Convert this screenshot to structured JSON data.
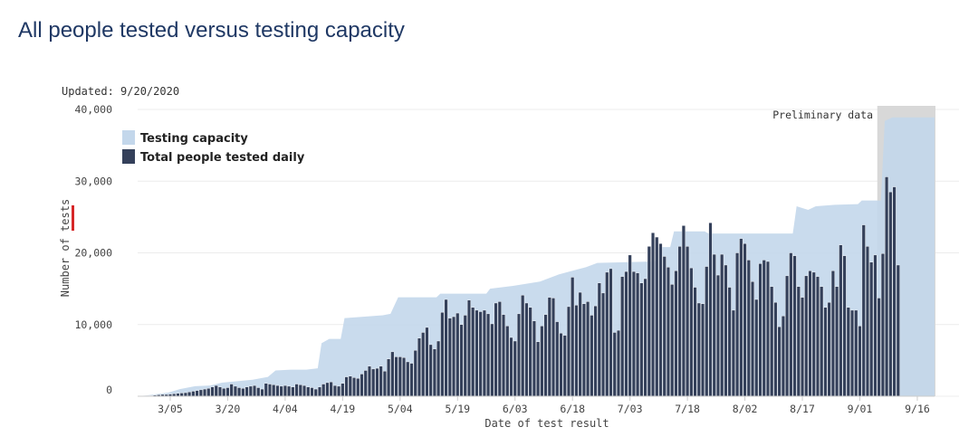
{
  "page": {
    "title": "All people tested versus testing capacity"
  },
  "chart_data": {
    "type": "bar",
    "title": "All people tested versus testing capacity",
    "subtitle": "Updated: 9/20/2020",
    "xlabel": "Date of test result",
    "ylabel": "Number of tests",
    "ylim": [
      0,
      40000
    ],
    "y_ticks": [
      0,
      10000,
      20000,
      30000,
      40000
    ],
    "y_tick_labels": [
      "0",
      "10,000",
      "20,000",
      "30,000",
      "40,000"
    ],
    "x_range": [
      "2020-02-26",
      "2020-09-20"
    ],
    "x_ticks": [
      "2020-03-05",
      "2020-03-20",
      "2020-04-04",
      "2020-04-19",
      "2020-05-04",
      "2020-05-19",
      "2020-06-03",
      "2020-06-18",
      "2020-07-03",
      "2020-07-18",
      "2020-08-02",
      "2020-08-17",
      "2020-09-01",
      "2020-09-16"
    ],
    "x_tick_labels": [
      "3/05",
      "3/20",
      "4/04",
      "4/19",
      "5/04",
      "5/19",
      "6/03",
      "6/18",
      "7/03",
      "7/18",
      "8/02",
      "8/17",
      "9/01",
      "9/16"
    ],
    "grid": true,
    "legend_position": "top-left",
    "preliminary": {
      "label": "Preliminary data",
      "from": "2020-09-07",
      "to": "2020-09-20"
    },
    "colors": {
      "capacity": "#c3d7eb",
      "tested": "#34405a",
      "preliminary_band": "#d8d8d8",
      "bar_outline": "#ffffff",
      "title": "#1f3864",
      "tick_highlight": "#d62728"
    },
    "series": [
      {
        "name": "Testing capacity",
        "kind": "area",
        "points": [
          [
            "2020-02-26",
            0
          ],
          [
            "2020-02-28",
            100
          ],
          [
            "2020-03-02",
            300
          ],
          [
            "2020-03-05",
            500
          ],
          [
            "2020-03-08",
            1000
          ],
          [
            "2020-03-12",
            1400
          ],
          [
            "2020-03-16",
            1500
          ],
          [
            "2020-03-19",
            1900
          ],
          [
            "2020-03-23",
            2100
          ],
          [
            "2020-03-27",
            2300
          ],
          [
            "2020-03-31",
            2700
          ],
          [
            "2020-04-02",
            3600
          ],
          [
            "2020-04-06",
            3700
          ],
          [
            "2020-04-10",
            3700
          ],
          [
            "2020-04-13",
            3900
          ],
          [
            "2020-04-14",
            7400
          ],
          [
            "2020-04-16",
            8000
          ],
          [
            "2020-04-19",
            8000
          ],
          [
            "2020-04-20",
            10900
          ],
          [
            "2020-04-30",
            11300
          ],
          [
            "2020-05-02",
            11500
          ],
          [
            "2020-05-04",
            13800
          ],
          [
            "2020-05-14",
            13800
          ],
          [
            "2020-05-15",
            14300
          ],
          [
            "2020-05-27",
            14300
          ],
          [
            "2020-05-28",
            15000
          ],
          [
            "2020-06-03",
            15400
          ],
          [
            "2020-06-10",
            16000
          ],
          [
            "2020-06-15",
            17000
          ],
          [
            "2020-06-22",
            18000
          ],
          [
            "2020-06-25",
            18600
          ],
          [
            "2020-07-10",
            18800
          ],
          [
            "2020-07-11",
            20800
          ],
          [
            "2020-07-14",
            20800
          ],
          [
            "2020-07-15",
            23000
          ],
          [
            "2020-07-23",
            23000
          ],
          [
            "2020-07-24",
            22700
          ],
          [
            "2020-08-15",
            22700
          ],
          [
            "2020-08-16",
            26500
          ],
          [
            "2020-08-19",
            26000
          ],
          [
            "2020-08-21",
            26500
          ],
          [
            "2020-08-26",
            26700
          ],
          [
            "2020-09-01",
            26800
          ],
          [
            "2020-09-02",
            27300
          ],
          [
            "2020-09-07",
            27300
          ],
          [
            "2020-09-08",
            38400
          ],
          [
            "2020-09-10",
            38900
          ],
          [
            "2020-09-20",
            38900
          ]
        ]
      },
      {
        "name": "Total people tested daily",
        "kind": "bar",
        "start_date": "2020-02-26",
        "values": [
          50,
          50,
          80,
          100,
          150,
          200,
          250,
          250,
          300,
          350,
          400,
          450,
          500,
          600,
          700,
          800,
          900,
          1000,
          1100,
          1300,
          1500,
          1300,
          1100,
          1200,
          1700,
          1400,
          1200,
          1100,
          1300,
          1400,
          1500,
          1200,
          1000,
          1800,
          1700,
          1600,
          1500,
          1400,
          1500,
          1400,
          1300,
          1700,
          1600,
          1500,
          1300,
          1200,
          1000,
          1300,
          1700,
          1900,
          2000,
          1500,
          1400,
          1800,
          2700,
          2800,
          2600,
          2500,
          3100,
          3600,
          4200,
          3800,
          3900,
          4200,
          3500,
          5200,
          6200,
          5500,
          5500,
          5400,
          4800,
          4600,
          6400,
          8100,
          8900,
          9600,
          7200,
          6600,
          7700,
          11700,
          13500,
          10900,
          11100,
          11600,
          10000,
          11300,
          13400,
          12400,
          12000,
          11800,
          12000,
          11500,
          10100,
          13000,
          13200,
          11400,
          9800,
          8200,
          7700,
          11500,
          14100,
          13000,
          12400,
          10500,
          7600,
          9800,
          11400,
          13800,
          13700,
          10400,
          8800,
          8500,
          12500,
          16600,
          12700,
          14500,
          12900,
          13200,
          11300,
          12600,
          15800,
          14400,
          17300,
          17800,
          8900,
          9200,
          16700,
          17400,
          19700,
          17400,
          17200,
          15800,
          16400,
          20900,
          22800,
          22200,
          21300,
          19500,
          18000,
          15600,
          17500,
          20900,
          23800,
          20900,
          17900,
          15200,
          13000,
          12900,
          18100,
          24200,
          19800,
          16900,
          19800,
          18300,
          15200,
          12000,
          20000,
          22000,
          21300,
          19000,
          16000,
          13500,
          18500,
          19000,
          18800,
          15300,
          13100,
          9700,
          11200,
          16800,
          20000,
          19600,
          15300,
          13800,
          16800,
          17500,
          17300,
          16700,
          15300,
          12400,
          13100,
          17500,
          15300,
          21100,
          19600,
          12400,
          12000,
          12000,
          9800,
          23900,
          20900,
          18700,
          19700,
          13700,
          19900,
          30600,
          28500,
          29200,
          18300
        ]
      }
    ]
  }
}
